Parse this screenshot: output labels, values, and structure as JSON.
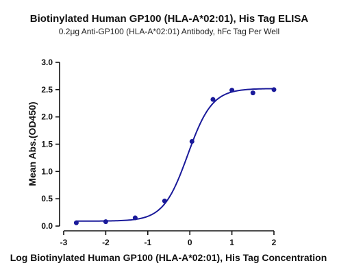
{
  "chart_data": {
    "type": "scatter",
    "title": "Biotinylated Human GP100 (HLA-A*02:01), His Tag ELISA",
    "subtitle": "0.2μg Anti-GP100 (HLA-A*02:01) Antibody, hFc Tag Per Well",
    "xlabel": "Log Biotinylated Human GP100 (HLA-A*02:01), His Tag Concentration",
    "ylabel": "Mean Abs.(OD450)",
    "xlim": [
      -3,
      2
    ],
    "ylim": [
      0,
      3
    ],
    "x_ticks": [
      "-3",
      "-2",
      "-1",
      "0",
      "1",
      "2"
    ],
    "y_ticks": [
      "0.0",
      "0.5",
      "1.0",
      "1.5",
      "2.0",
      "2.5",
      "3.0"
    ],
    "grid": false,
    "color": "#1a1a9a",
    "series": [
      {
        "x": [
          -2.7,
          -2.0,
          -1.3,
          -0.6,
          0.05,
          0.55,
          1.0,
          1.5,
          2.0
        ],
        "y": [
          0.06,
          0.08,
          0.15,
          0.46,
          1.55,
          2.32,
          2.49,
          2.44,
          2.5
        ]
      }
    ],
    "fit": {
      "model": "4PL",
      "bottom": 0.09,
      "top": 2.52,
      "logEC50": -0.05,
      "hillslope": 1.5
    }
  }
}
